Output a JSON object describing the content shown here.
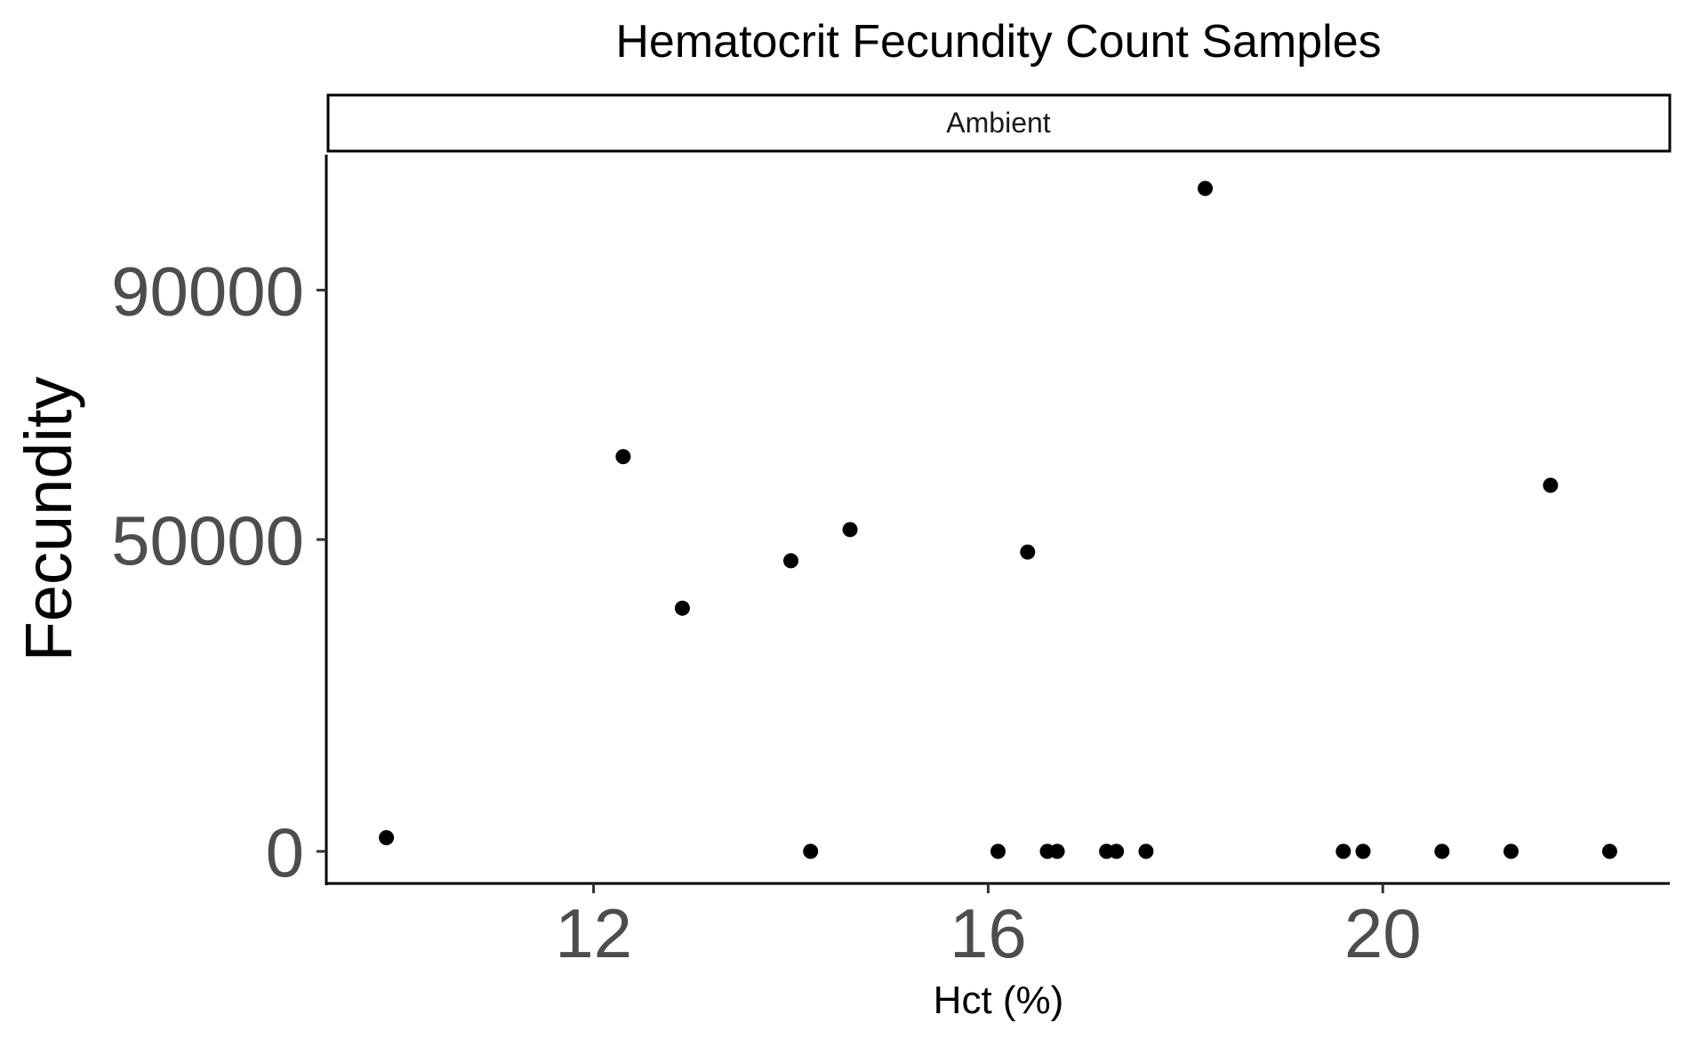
{
  "chart_data": {
    "type": "scatter",
    "title": "Hematocrit Fecundity Count Samples",
    "facet_label": "Ambient",
    "xlabel": "Hct (%)",
    "ylabel": "Fecundity",
    "xlim": [
      9.3,
      22.9
    ],
    "ylim": [
      -5000,
      112000
    ],
    "x_ticks": [
      12,
      16,
      20
    ],
    "y_ticks": [
      0,
      50000,
      90000
    ],
    "grid": false,
    "point_color": "#000000",
    "points": [
      {
        "x": 9.9,
        "y": 2200
      },
      {
        "x": 12.3,
        "y": 63300
      },
      {
        "x": 12.9,
        "y": 39000
      },
      {
        "x": 14.0,
        "y": 46600
      },
      {
        "x": 14.2,
        "y": 0
      },
      {
        "x": 14.6,
        "y": 51600
      },
      {
        "x": 16.1,
        "y": 0
      },
      {
        "x": 16.4,
        "y": 48000
      },
      {
        "x": 16.6,
        "y": 0
      },
      {
        "x": 16.7,
        "y": 0
      },
      {
        "x": 17.2,
        "y": 0
      },
      {
        "x": 17.3,
        "y": 0
      },
      {
        "x": 17.6,
        "y": 0
      },
      {
        "x": 18.2,
        "y": 106300
      },
      {
        "x": 19.6,
        "y": 0
      },
      {
        "x": 19.8,
        "y": 0
      },
      {
        "x": 20.6,
        "y": 0
      },
      {
        "x": 21.3,
        "y": 0
      },
      {
        "x": 21.7,
        "y": 58700
      },
      {
        "x": 22.3,
        "y": 0
      }
    ]
  }
}
